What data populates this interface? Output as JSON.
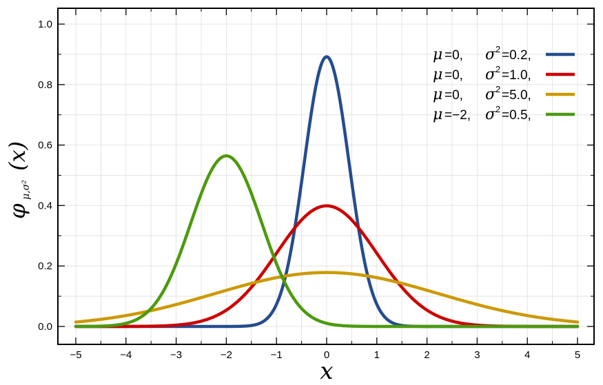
{
  "chart_data": {
    "type": "line",
    "xlabel": "x",
    "ylabel": {
      "main": "φ",
      "sub": "μ,σ²",
      "arg": "(x)"
    },
    "xlim": [
      -5,
      5
    ],
    "ylim": [
      0,
      1.0
    ],
    "x_ticks": [
      -5,
      -4,
      -3,
      -2,
      -1,
      0,
      1,
      2,
      3,
      4,
      5
    ],
    "x_tick_labels": [
      "−5",
      "−4",
      "−3",
      "−2",
      "−1",
      "0",
      "1",
      "2",
      "3",
      "4",
      "5"
    ],
    "y_ticks": [
      0.0,
      0.2,
      0.4,
      0.6,
      0.8,
      1.0
    ],
    "y_tick_labels": [
      "0.0",
      "0.2",
      "0.4",
      "0.6",
      "0.8",
      "1.0"
    ],
    "grid": true,
    "legend_position": "top-right",
    "series": [
      {
        "mu": 0,
        "sigma2": 0.2,
        "color": "#254c8d",
        "mu_label": "0,",
        "sigma_label": "0.2,"
      },
      {
        "mu": 0,
        "sigma2": 1.0,
        "color": "#cc0000",
        "mu_label": "0,",
        "sigma_label": "1.0,"
      },
      {
        "mu": 0,
        "sigma2": 5.0,
        "color": "#cc9900",
        "mu_label": "0,",
        "sigma_label": "5.0,"
      },
      {
        "mu": -2,
        "sigma2": 0.5,
        "color": "#4c9a0e",
        "mu_label": "−2,",
        "sigma_label": "0.5,"
      }
    ]
  }
}
